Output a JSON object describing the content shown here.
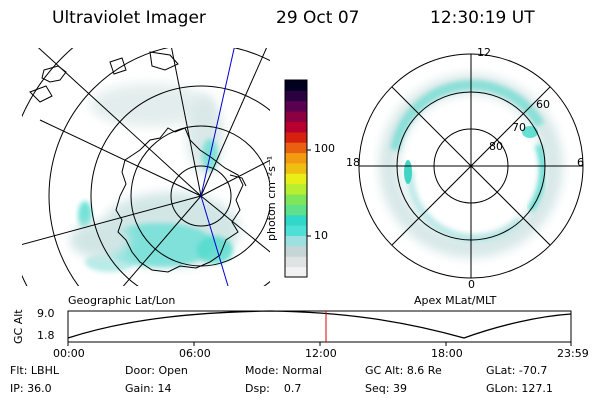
{
  "header": {
    "title": "Ultraviolet Imager",
    "date": "29 Oct 07",
    "time": "12:30:19 UT"
  },
  "left_panel": {
    "caption": "Geographic Lat/Lon"
  },
  "right_panel": {
    "caption": "Apex MLat/MLT",
    "mlt_labels": {
      "top": "12",
      "bottom": "0",
      "left": "18",
      "right": "6"
    },
    "lat_labels": [
      "60",
      "70",
      "80"
    ]
  },
  "colorbar": {
    "unit_label": "photon cm⁻²s⁻¹",
    "ticks": [
      "100",
      "10"
    ],
    "scale": "log",
    "colors": [
      "#f2f2f2",
      "#dfe3e3",
      "#c6d6d6",
      "#9edfe0",
      "#4ee0d6",
      "#2fd8c8",
      "#5fe08a",
      "#7fe65a",
      "#b8ee32",
      "#e8ee18",
      "#f0c010",
      "#f29a10",
      "#e86010",
      "#d62010",
      "#b80030",
      "#8a0040",
      "#5a0050",
      "#2a0040",
      "#000020"
    ]
  },
  "altitude_plot": {
    "y_label": "GC Alt",
    "y_ticks": [
      "9.0",
      "1.8"
    ],
    "x_ticks": [
      "00:00",
      "06:00",
      "12:00",
      "18:00",
      "23:59"
    ],
    "marker_time": "12:30"
  },
  "status": {
    "row1": [
      {
        "key": "Flt:",
        "val": "LBHL"
      },
      {
        "key": "Door:",
        "val": "Open"
      },
      {
        "key": "Mode:",
        "val": "Normal"
      },
      {
        "key": "GC Alt:",
        "val": "8.6 Re"
      },
      {
        "key": "GLat:",
        "val": "-70.7"
      }
    ],
    "row2": [
      {
        "key": "IP:",
        "val": "36.0"
      },
      {
        "key": "Gain:",
        "val": "14"
      },
      {
        "key": "Dsp:",
        "val": "0.7"
      },
      {
        "key": "Seq:",
        "val": "39"
      },
      {
        "key": "GLon:",
        "val": "127.1"
      }
    ]
  }
}
